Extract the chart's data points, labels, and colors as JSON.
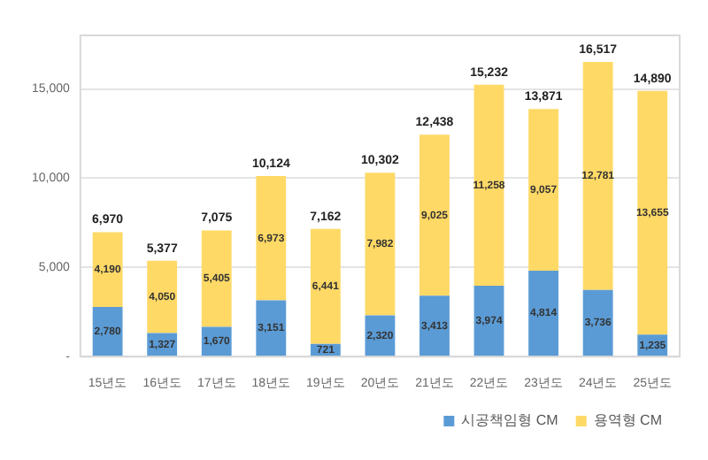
{
  "chart_data": {
    "type": "bar",
    "stacked": true,
    "categories": [
      "15년도",
      "16년도",
      "17년도",
      "18년도",
      "19년도",
      "20년도",
      "21년도",
      "22년도",
      "23년도",
      "24년도",
      "25년도"
    ],
    "series": [
      {
        "name": "시공책임형 CM",
        "color": "#5b9bd5",
        "values": [
          2780,
          1327,
          1670,
          3151,
          721,
          2320,
          3413,
          3974,
          4814,
          3736,
          1235
        ],
        "value_labels": [
          "2,780",
          "1,327",
          "1,670",
          "3,151",
          "721",
          "2,320",
          "3,413",
          "3,974",
          "4,814",
          "3,736",
          "1,235"
        ]
      },
      {
        "name": "용역형 CM",
        "color": "#ffd966",
        "values": [
          4190,
          4050,
          5405,
          6973,
          6441,
          7982,
          9025,
          11258,
          9057,
          12781,
          13655
        ],
        "value_labels": [
          "4,190",
          "4,050",
          "5,405",
          "6,973",
          "6,441",
          "7,982",
          "9,025",
          "11,258",
          "9,057",
          "12,781",
          "13,655"
        ]
      }
    ],
    "totals": [
      "6,970",
      "5,377",
      "7,075",
      "10,124",
      "7,162",
      "10,302",
      "12,438",
      "15,232",
      "13,871",
      "16,517",
      "14,890"
    ],
    "ylim": [
      0,
      18000
    ],
    "yticks": [
      {
        "value": 0,
        "label": "-"
      },
      {
        "value": 5000,
        "label": "5,000"
      },
      {
        "value": 10000,
        "label": "10,000"
      },
      {
        "value": 15000,
        "label": "15,000"
      }
    ],
    "grid": "y",
    "legend": "bottom right"
  }
}
